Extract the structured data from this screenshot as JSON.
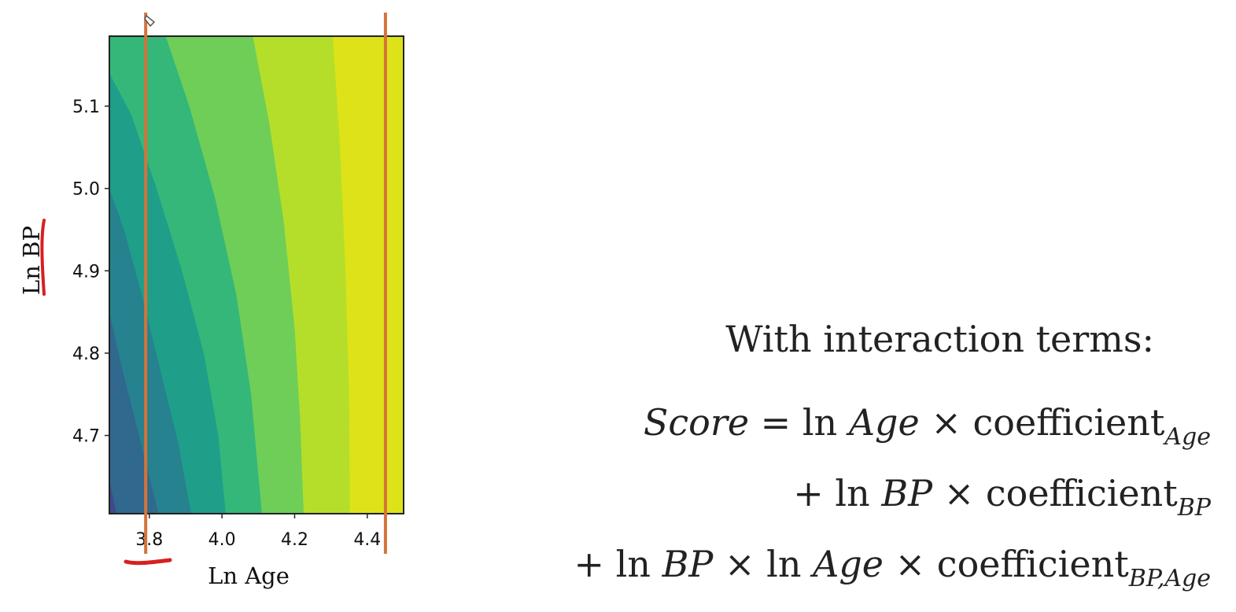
{
  "chart_data": {
    "type": "contour",
    "xlabel": "Ln Age",
    "ylabel": "Ln BP",
    "x_ticks": [
      "3.8",
      "4.0",
      "4.2",
      "4.4"
    ],
    "y_ticks": [
      "4.7",
      "4.8",
      "4.9",
      "5.0",
      "5.1"
    ],
    "xlim": [
      3.69,
      4.5
    ],
    "ylim": [
      4.605,
      5.185
    ],
    "grid": false,
    "colormap": "viridis",
    "level_colors": [
      "#440154",
      "#472f7d",
      "#3e4a89",
      "#31688e",
      "#26828e",
      "#1f9e89",
      "#35b779",
      "#6ece58",
      "#b5de2b",
      "#dde318"
    ],
    "contour_boundaries": [
      {
        "x": [
          3.69,
          3.7,
          3.71
        ],
        "y": [
          4.645,
          4.625,
          4.605
        ]
      },
      {
        "x": [
          3.69,
          3.72,
          3.76,
          3.8,
          3.825
        ],
        "y": [
          4.85,
          4.79,
          4.72,
          4.65,
          4.605
        ]
      },
      {
        "x": [
          3.69,
          3.73,
          3.78,
          3.83,
          3.88,
          3.915
        ],
        "y": [
          5.0,
          4.95,
          4.87,
          4.78,
          4.69,
          4.605
        ]
      },
      {
        "x": [
          3.69,
          3.75,
          3.82,
          3.89,
          3.95,
          3.99,
          4.01
        ],
        "y": [
          5.14,
          5.09,
          5.0,
          4.9,
          4.8,
          4.7,
          4.605
        ]
      },
      {
        "x": [
          3.845,
          3.91,
          3.98,
          4.04,
          4.08,
          4.11
        ],
        "y": [
          5.185,
          5.1,
          4.99,
          4.87,
          4.75,
          4.605
        ]
      },
      {
        "x": [
          4.085,
          4.13,
          4.17,
          4.2,
          4.215,
          4.225
        ],
        "y": [
          5.185,
          5.08,
          4.96,
          4.83,
          4.72,
          4.605
        ]
      },
      {
        "x": [
          4.305,
          4.325,
          4.34,
          4.35,
          4.352
        ],
        "y": [
          5.185,
          5.05,
          4.9,
          4.75,
          4.605
        ]
      }
    ],
    "vertical_markers": [
      {
        "x": 3.79,
        "color": "#d4733a"
      },
      {
        "x": 4.45,
        "color": "#d4733a"
      }
    ],
    "annotation_color": "#d62020"
  },
  "equation": {
    "heading": "With interaction terms:",
    "line1": {
      "lhs": "Score",
      "eq": " = ln ",
      "var": "Age",
      "times": " × coefficient",
      "sub": "Age"
    },
    "line2": {
      "plus": "+ ln ",
      "var": "BP",
      "times": " × coefficient",
      "sub": "BP"
    },
    "line3": {
      "plus": "+ ln ",
      "var1": "BP",
      "mid": " × ln ",
      "var2": "Age",
      "times": " × coefficient",
      "sub": "BP,Age"
    }
  }
}
